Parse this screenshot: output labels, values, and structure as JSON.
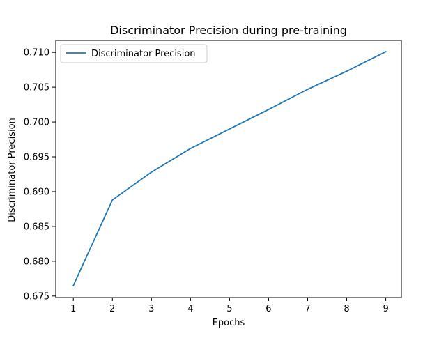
{
  "chart_data": {
    "type": "line",
    "title": "Discriminator Precision during pre-training",
    "xlabel": "Epochs",
    "ylabel": "Discriminator Precision",
    "x": [
      1,
      2,
      3,
      4,
      5,
      6,
      7,
      8,
      9
    ],
    "series": [
      {
        "name": "Discriminator Precision",
        "values": [
          0.6765,
          0.6888,
          0.6928,
          0.6962,
          0.699,
          0.7018,
          0.7047,
          0.7073,
          0.7101
        ],
        "color": "#1f77b4"
      }
    ],
    "xticks": [
      "1",
      "2",
      "3",
      "4",
      "5",
      "6",
      "7",
      "8",
      "9"
    ],
    "yticks": [
      "0.675",
      "0.680",
      "0.685",
      "0.690",
      "0.695",
      "0.700",
      "0.705",
      "0.710"
    ],
    "xlim": [
      0.55,
      9.4
    ],
    "ylim": [
      0.67478,
      0.71172
    ],
    "grid": false,
    "legend_position": "upper-left"
  }
}
